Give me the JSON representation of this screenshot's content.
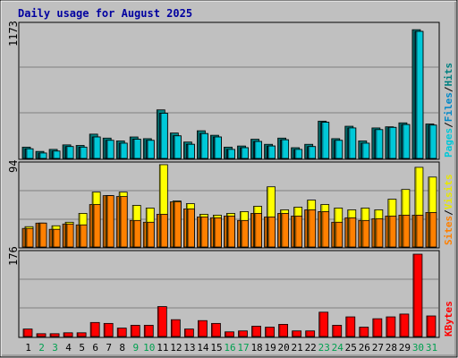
{
  "title": "Daily usage for August 2025",
  "colors": {
    "background": "#ffffff",
    "frame": "#c0c0c0",
    "panel": "#c0c0c0",
    "title": "#0000a0",
    "pages": "#00c8d8",
    "files": "#0088c8",
    "hits": "#008080",
    "visits": "#ffff00",
    "sites": "#ff8000",
    "kbytes": "#ff0000",
    "weekday_label": "#000000",
    "weekend_label": "#00a050"
  },
  "separators": {
    "slash": "/"
  },
  "chart_data": [
    {
      "type": "bar",
      "name": "hits-files-pages",
      "ymax_label": "1173",
      "ylim": [
        0,
        1173
      ],
      "series_labels": [
        "Pages",
        "Files",
        "Hits"
      ],
      "series": [
        {
          "name": "Hits",
          "values": [
            100,
            62,
            80,
            120,
            115,
            215,
            180,
            155,
            190,
            175,
            430,
            225,
            145,
            245,
            205,
            100,
            110,
            170,
            125,
            180,
            95,
            125,
            330,
            175,
            285,
            155,
            270,
            280,
            315,
            1140,
            305
          ]
        },
        {
          "name": "Files",
          "values": [
            85,
            48,
            65,
            105,
            100,
            190,
            160,
            135,
            170,
            160,
            400,
            200,
            125,
            220,
            190,
            80,
            95,
            150,
            110,
            165,
            80,
            105,
            320,
            160,
            270,
            135,
            255,
            275,
            300,
            1125,
            295
          ]
        },
        {
          "name": "Pages",
          "values": [
            85,
            48,
            65,
            105,
            100,
            190,
            160,
            135,
            170,
            160,
            400,
            200,
            125,
            220,
            190,
            80,
            95,
            150,
            110,
            165,
            80,
            105,
            320,
            160,
            270,
            135,
            255,
            275,
            300,
            1125,
            295
          ]
        }
      ]
    },
    {
      "type": "bar",
      "name": "visits-sites",
      "ymax_label": "94",
      "ylim": [
        0,
        94
      ],
      "series_labels": [
        "Sites",
        "Visits"
      ],
      "series": [
        {
          "name": "Visits",
          "values": [
            23,
            27,
            24,
            28,
            38,
            62,
            58,
            62,
            47,
            44,
            93,
            52,
            49,
            37,
            36,
            38,
            40,
            46,
            68,
            42,
            45,
            53,
            48,
            44,
            42,
            44,
            42,
            54,
            65,
            90,
            79
          ]
        },
        {
          "name": "Sites",
          "values": [
            21,
            27,
            20,
            26,
            25,
            48,
            58,
            57,
            30,
            28,
            37,
            51,
            43,
            34,
            33,
            35,
            30,
            38,
            34,
            38,
            35,
            42,
            40,
            28,
            33,
            30,
            32,
            35,
            36,
            36,
            39
          ]
        }
      ]
    },
    {
      "type": "bar",
      "name": "kbytes",
      "ymax_label": "176",
      "ylim": [
        0,
        176
      ],
      "series_labels": [
        "KBytes"
      ],
      "series": [
        {
          "name": "KBytes",
          "values": [
            16,
            6,
            6,
            8,
            8,
            30,
            28,
            18,
            24,
            24,
            64,
            36,
            16,
            34,
            28,
            10,
            12,
            22,
            20,
            26,
            12,
            12,
            52,
            24,
            42,
            20,
            38,
            42,
            48,
            176,
            44
          ]
        }
      ]
    }
  ],
  "days": [
    "1",
    "2",
    "3",
    "4",
    "5",
    "6",
    "7",
    "8",
    "9",
    "10",
    "11",
    "12",
    "13",
    "14",
    "15",
    "16",
    "17",
    "18",
    "19",
    "20",
    "21",
    "22",
    "23",
    "24",
    "25",
    "26",
    "27",
    "28",
    "29",
    "30",
    "31"
  ],
  "weekend_days": [
    2,
    3,
    9,
    10,
    16,
    17,
    23,
    24,
    30,
    31
  ]
}
